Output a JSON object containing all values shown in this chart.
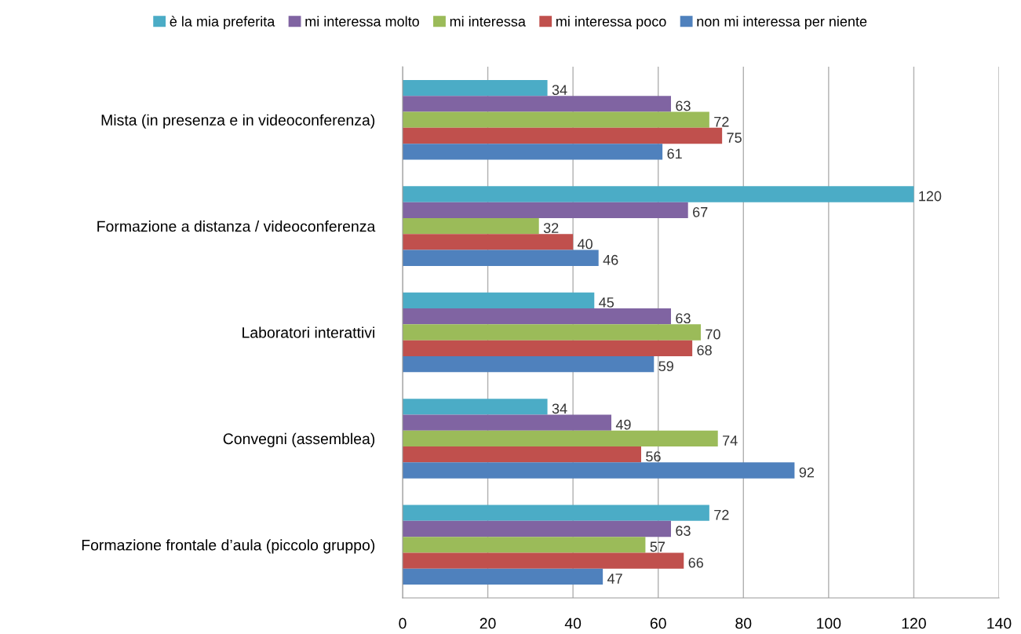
{
  "chart_data": {
    "type": "bar",
    "orientation": "horizontal",
    "categories": [
      "Mista (in presenza e in videoconferenza)",
      "Formazione a distanza / videoconferenza",
      "Laboratori interattivi",
      "Convegni (assemblea)",
      "Formazione frontale d’aula (piccolo gruppo)"
    ],
    "series": [
      {
        "name": "è la mia preferita",
        "color": "#4bacc6",
        "values": [
          34,
          120,
          45,
          34,
          72
        ]
      },
      {
        "name": "mi interessa molto",
        "color": "#8064a2",
        "values": [
          63,
          67,
          63,
          49,
          63
        ]
      },
      {
        "name": "mi interessa",
        "color": "#9bbb59",
        "values": [
          72,
          32,
          70,
          74,
          57
        ]
      },
      {
        "name": "mi interessa poco",
        "color": "#c0504d",
        "values": [
          75,
          40,
          68,
          56,
          66
        ]
      },
      {
        "name": "non mi interessa per niente",
        "color": "#4f81bd",
        "values": [
          61,
          46,
          59,
          92,
          47
        ]
      }
    ],
    "xlim": [
      0,
      140
    ],
    "xticks": [
      0,
      20,
      40,
      60,
      80,
      100,
      120,
      140
    ],
    "grid": "x",
    "legend": "top",
    "data_labels": true
  }
}
